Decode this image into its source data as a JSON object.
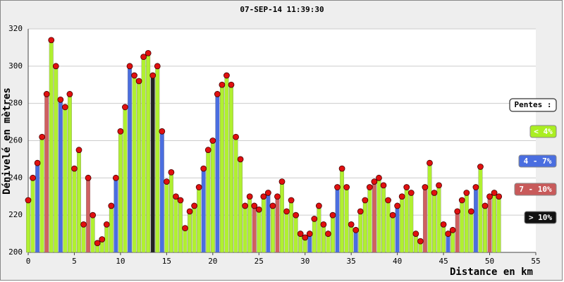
{
  "chart_data": {
    "type": "profile",
    "title": "07-SEP-14 11:39:30",
    "x_label": "Distance en km",
    "y_label": "Dénivelé en mètres",
    "x": [
      0,
      0.5,
      1,
      1.5,
      2,
      2.5,
      3,
      3.5,
      4,
      4.5,
      5,
      5.5,
      6,
      6.5,
      7,
      7.5,
      8,
      8.5,
      9,
      9.5,
      10,
      10.5,
      11,
      11.5,
      12,
      12.5,
      13,
      13.5,
      14,
      14.5,
      15,
      15.5,
      16,
      16.5,
      17,
      17.5,
      18,
      18.5,
      19,
      19.5,
      20,
      20.5,
      21,
      21.5,
      22,
      22.5,
      23,
      23.5,
      24,
      24.5,
      25,
      25.5,
      26,
      26.5,
      27,
      27.5,
      28,
      28.5,
      29,
      29.5,
      30,
      30.5,
      31,
      31.5,
      32,
      32.5,
      33,
      33.5,
      34,
      34.5,
      35,
      35.5,
      36,
      36.5,
      37,
      37.5,
      38,
      38.5,
      39,
      39.5,
      40,
      40.5,
      41,
      41.5,
      42,
      42.5,
      43,
      43.5,
      44,
      44.5,
      45,
      45.5,
      46,
      46.5,
      47,
      47.5,
      48,
      48.5,
      49,
      49.5,
      50,
      50.5,
      51
    ],
    "values": [
      228,
      240,
      248,
      262,
      285,
      314,
      300,
      282,
      278,
      285,
      245,
      255,
      215,
      240,
      220,
      205,
      207,
      215,
      225,
      240,
      265,
      278,
      300,
      295,
      292,
      305,
      307,
      295,
      300,
      265,
      238,
      243,
      230,
      228,
      213,
      222,
      225,
      235,
      245,
      255,
      260,
      285,
      290,
      295,
      290,
      262,
      250,
      225,
      230,
      225,
      223,
      230,
      232,
      225,
      230,
      238,
      222,
      228,
      220,
      210,
      208,
      210,
      218,
      225,
      215,
      210,
      220,
      235,
      245,
      235,
      215,
      212,
      222,
      228,
      235,
      238,
      240,
      236,
      228,
      220,
      225,
      230,
      235,
      232,
      210,
      206,
      235,
      248,
      232,
      236,
      215,
      210,
      212,
      222,
      228,
      232,
      222,
      235,
      246,
      225,
      230,
      232,
      230
    ],
    "bar_colors": [
      "#b0f030",
      "#b0f030",
      "#4a6ee0",
      "#b0f030",
      "#d06060",
      "#b0f030",
      "#b0f030",
      "#4a6ee0",
      "#b0f030",
      "#b0f030",
      "#b0f030",
      "#b0f030",
      "#b0f030",
      "#d06060",
      "#b0f030",
      "#b0f030",
      "#b0f030",
      "#b0f030",
      "#b0f030",
      "#4a6ee0",
      "#b0f030",
      "#b0f030",
      "#4a6ee0",
      "#b0f030",
      "#b0f030",
      "#b0f030",
      "#b0f030",
      "#222222",
      "#b0f030",
      "#4a6ee0",
      "#b0f030",
      "#b0f030",
      "#b0f030",
      "#b0f030",
      "#b0f030",
      "#b0f030",
      "#b0f030",
      "#b0f030",
      "#4a6ee0",
      "#b0f030",
      "#b0f030",
      "#4a6ee0",
      "#b0f030",
      "#b0f030",
      "#b0f030",
      "#b0f030",
      "#b0f030",
      "#b0f030",
      "#b0f030",
      "#d06060",
      "#b0f030",
      "#b0f030",
      "#4a6ee0",
      "#b0f030",
      "#d06060",
      "#b0f030",
      "#b0f030",
      "#b0f030",
      "#b0f030",
      "#b0f030",
      "#b0f030",
      "#4a6ee0",
      "#b0f030",
      "#b0f030",
      "#b0f030",
      "#b0f030",
      "#b0f030",
      "#4a6ee0",
      "#b0f030",
      "#b0f030",
      "#b0f030",
      "#4a6ee0",
      "#b0f030",
      "#b0f030",
      "#b0f030",
      "#d06060",
      "#b0f030",
      "#b0f030",
      "#b0f030",
      "#b0f030",
      "#4a6ee0",
      "#b0f030",
      "#b0f030",
      "#b0f030",
      "#b0f030",
      "#b0f030",
      "#d06060",
      "#b0f030",
      "#b0f030",
      "#b0f030",
      "#b0f030",
      "#4a6ee0",
      "#b0f030",
      "#d06060",
      "#b0f030",
      "#b0f030",
      "#b0f030",
      "#4a6ee0",
      "#b0f030",
      "#b0f030",
      "#d06060",
      "#b0f030",
      "#b0f030"
    ],
    "marker_color": "#e01010",
    "xlim": [
      0,
      55
    ],
    "xticks": [
      0,
      5,
      10,
      15,
      20,
      25,
      30,
      35,
      40,
      45,
      50,
      55
    ],
    "ylim": [
      200,
      320
    ],
    "yticks": [
      200,
      220,
      240,
      260,
      280,
      300,
      320
    ],
    "grid": true,
    "legend_title": "Pentes :",
    "legend": [
      {
        "label": "< 4%",
        "color": "#aaee22"
      },
      {
        "label": "4 - 7%",
        "color": "#4a6ee0"
      },
      {
        "label": "7 - 10%",
        "color": "#c85a5a"
      },
      {
        "label": "> 10%",
        "color": "#111111"
      }
    ]
  }
}
